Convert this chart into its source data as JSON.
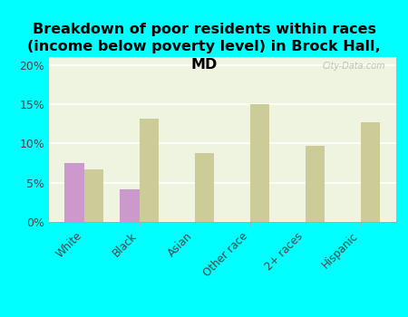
{
  "title": "Breakdown of poor residents within races\n(income below poverty level) in Brock Hall,\nMD",
  "categories": [
    "White",
    "Black",
    "Asian",
    "Other race",
    "2+ races",
    "Hispanic"
  ],
  "brock_hall": [
    7.5,
    4.2,
    0,
    0,
    0,
    0
  ],
  "maryland": [
    6.7,
    13.2,
    8.8,
    15.0,
    9.7,
    12.7
  ],
  "brock_hall_color": "#cc99cc",
  "maryland_color": "#cccc99",
  "background_outer": "#00ffff",
  "background_inner": "#eef4e0",
  "ylim": [
    0,
    21
  ],
  "yticks": [
    0,
    5,
    10,
    15,
    20
  ],
  "ytick_labels": [
    "0%",
    "5%",
    "10%",
    "15%",
    "20%"
  ],
  "bar_width": 0.35,
  "title_fontsize": 11.5,
  "watermark": "City-Data.com"
}
